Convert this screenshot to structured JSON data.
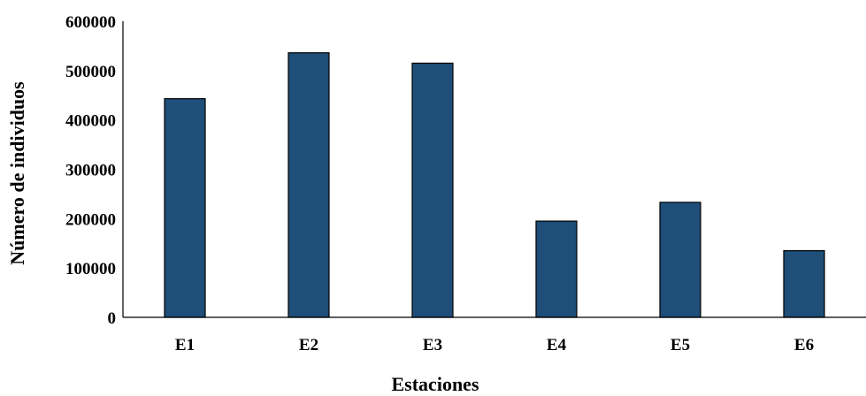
{
  "chart_data": {
    "type": "bar",
    "categories": [
      "E1",
      "E2",
      "E3",
      "E4",
      "E5",
      "E6"
    ],
    "values": [
      443000,
      536000,
      515000,
      195000,
      233000,
      135000
    ],
    "xlabel": "Estaciones",
    "ylabel": "Número de individuos",
    "yticks": [
      "0",
      "100000",
      "200000",
      "300000",
      "400000",
      "500000",
      "600000"
    ],
    "ylim": [
      0,
      600000
    ],
    "bar_color": "#1f4e79",
    "grid": false,
    "legend": false
  }
}
